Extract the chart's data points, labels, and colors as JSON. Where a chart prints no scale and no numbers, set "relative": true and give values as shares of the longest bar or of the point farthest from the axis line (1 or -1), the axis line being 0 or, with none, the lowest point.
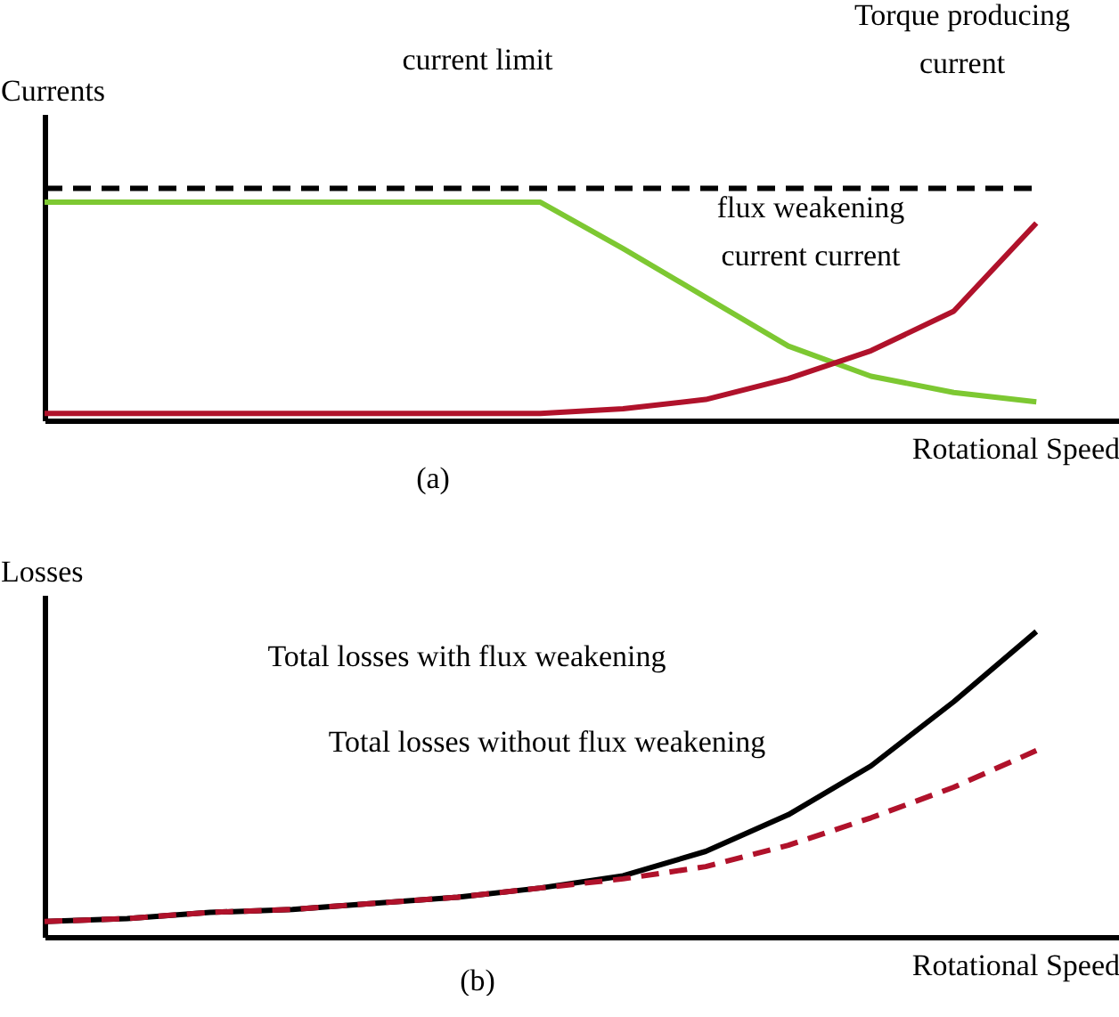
{
  "chart_data": [
    {
      "type": "line",
      "relative": true,
      "ylabel": "Currents",
      "xlabel": "Rotational Speed",
      "grid": false,
      "legend": false,
      "marker": "none",
      "categories": [
        null,
        null,
        null,
        null,
        null,
        null,
        null,
        null,
        null,
        null,
        null,
        null,
        null,
        null
      ],
      "series": [
        {
          "name": "current limit",
          "color": "#000000",
          "line_style": "dashed",
          "values": [
            1,
            1,
            1,
            1,
            1,
            1,
            1,
            1,
            1,
            1,
            1,
            1,
            1,
            null
          ]
        },
        {
          "color": "#7dc832",
          "values": [
            0.94,
            0.94,
            0.94,
            0.94,
            0.94,
            0.94,
            0.94,
            0.74,
            0.53,
            0.32,
            0.19,
            0.12,
            0.08,
            null
          ]
        },
        {
          "color": "#b0122b",
          "values": [
            0.03,
            0.03,
            0.03,
            0.03,
            0.03,
            0.03,
            0.03,
            0.05,
            0.09,
            0.18,
            0.3,
            0.47,
            0.85,
            null
          ]
        }
      ],
      "annotations": [
        "Torque producing current",
        "flux weakening current current",
        "(a)"
      ]
    },
    {
      "type": "line",
      "relative": true,
      "ylabel": "Losses",
      "xlabel": "Rotational Speed",
      "grid": false,
      "legend": false,
      "marker": "none",
      "categories": [
        null,
        null,
        null,
        null,
        null,
        null,
        null,
        null,
        null,
        null,
        null,
        null,
        null,
        null
      ],
      "series": [
        {
          "color": "#000000",
          "line_style": "solid",
          "values": [
            0.05,
            0.06,
            0.08,
            0.09,
            0.11,
            0.13,
            0.16,
            0.2,
            0.28,
            0.4,
            0.56,
            0.77,
            1.0,
            null
          ]
        },
        {
          "color": "#b0122b",
          "line_style": "dashed",
          "values": [
            0.05,
            0.06,
            0.08,
            0.09,
            0.11,
            0.13,
            0.16,
            0.19,
            0.23,
            0.3,
            0.39,
            0.49,
            0.61,
            null
          ]
        }
      ],
      "annotations": [
        "Total losses with flux weakening",
        "Total losses without flux weakening",
        "(b)"
      ]
    }
  ]
}
